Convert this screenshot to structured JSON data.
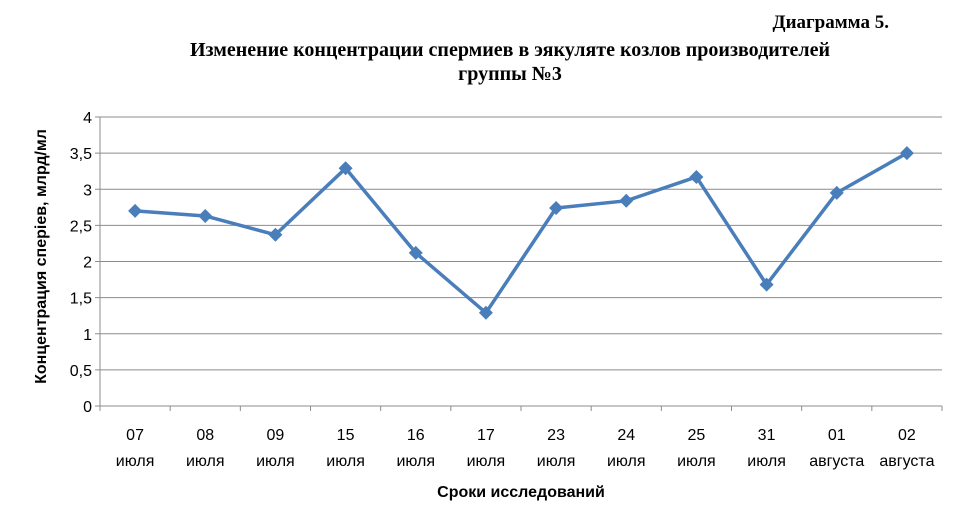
{
  "caption": "Диаграмма 5.",
  "chart_data": {
    "type": "line",
    "title_lines": [
      "Изменение концентрации спермиев в эякуляте козлов производителей",
      "группы №3"
    ],
    "xlabel": "Сроки исследований",
    "ylabel": "Концентрация сперiев, млрд/мл",
    "ylim": [
      0,
      4
    ],
    "yticks": [
      "0",
      "0,5",
      "1",
      "1,5",
      "2",
      "2,5",
      "3",
      "3,5",
      "4"
    ],
    "grid": true,
    "categories": [
      {
        "day": "07",
        "month": "июля"
      },
      {
        "day": "08",
        "month": "июля"
      },
      {
        "day": "09",
        "month": "июля"
      },
      {
        "day": "15",
        "month": "июля"
      },
      {
        "day": "16",
        "month": "июля"
      },
      {
        "day": "17",
        "month": "июля"
      },
      {
        "day": "23",
        "month": "июля"
      },
      {
        "day": "24",
        "month": "июля"
      },
      {
        "day": "25",
        "month": "июля"
      },
      {
        "day": "31",
        "month": "июля"
      },
      {
        "day": "01",
        "month": "августа"
      },
      {
        "day": "02",
        "month": "августа"
      }
    ],
    "series": [
      {
        "values": [
          2.7,
          2.63,
          2.37,
          3.29,
          2.12,
          1.29,
          2.74,
          2.84,
          3.17,
          1.68,
          2.95,
          3.5
        ],
        "color": "#4A7EBB",
        "marker": "diamond"
      }
    ]
  }
}
